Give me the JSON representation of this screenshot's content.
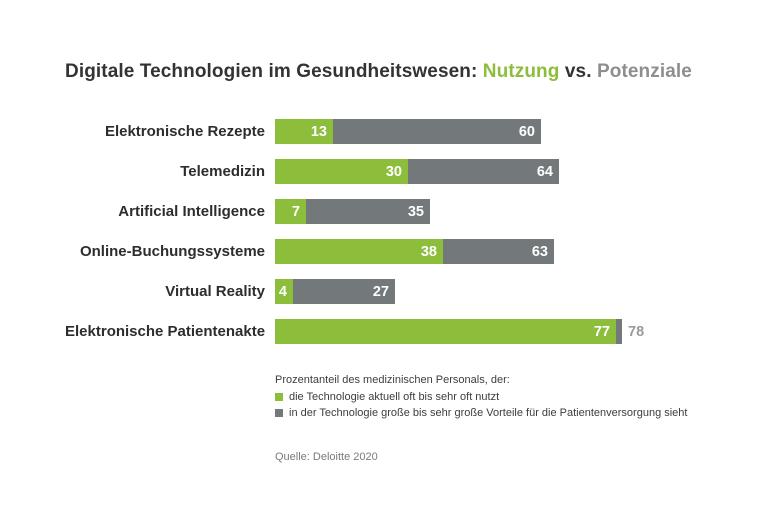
{
  "title": {
    "prefix": "Digitale Technologien im Gesundheitswesen: ",
    "highlight_green": "Nutzung",
    "middle": " vs. ",
    "highlight_gray": "Potenziale"
  },
  "colors": {
    "green": "#8CBE3C",
    "gray": "#73787B",
    "title_dark": "#333333",
    "title_gray": "#8E8E8E",
    "outside_label_gray": "#9B9B9B",
    "legend_text": "#3D3D3D",
    "source_text": "#7A7A7A"
  },
  "chart_data": {
    "type": "bar",
    "orientation": "horizontal",
    "title": "Digitale Technologien im Gesundheitswesen: Nutzung vs. Potenziale",
    "categories": [
      "Elektronische Rezepte",
      "Telemedizin",
      "Artificial Intelligence",
      "Online-Buchungssysteme",
      "Virtual Reality",
      "Elektronische Patientenakte"
    ],
    "series": [
      {
        "name": "die Technologie aktuell oft bis sehr oft nutzt",
        "color": "#8CBE3C",
        "values": [
          13,
          30,
          7,
          38,
          4,
          77
        ]
      },
      {
        "name": "in der Technologie große bis sehr große Vorteile für die Patientenversorgung sieht",
        "color": "#73787B",
        "values": [
          60,
          64,
          35,
          63,
          27,
          78
        ]
      }
    ],
    "xlim": [
      0,
      78
    ],
    "value_labels": true,
    "grid": false,
    "legend_position": "bottom",
    "layout_hint": "gray potential bar is drawn from the green usage value to the potential value (overlay); potential label drawn outside the bar when remaining segment is too narrow"
  },
  "legend": {
    "heading": "Prozentanteil des medizinischen Personals, der:",
    "items": [
      {
        "label": "die Technologie aktuell oft bis sehr oft nutzt",
        "color": "#8CBE3C"
      },
      {
        "label": "in der Technologie große bis sehr große Vorteile für die Patientenversorgung sieht",
        "color": "#73787B"
      }
    ]
  },
  "source": "Quelle: Deloitte 2020"
}
